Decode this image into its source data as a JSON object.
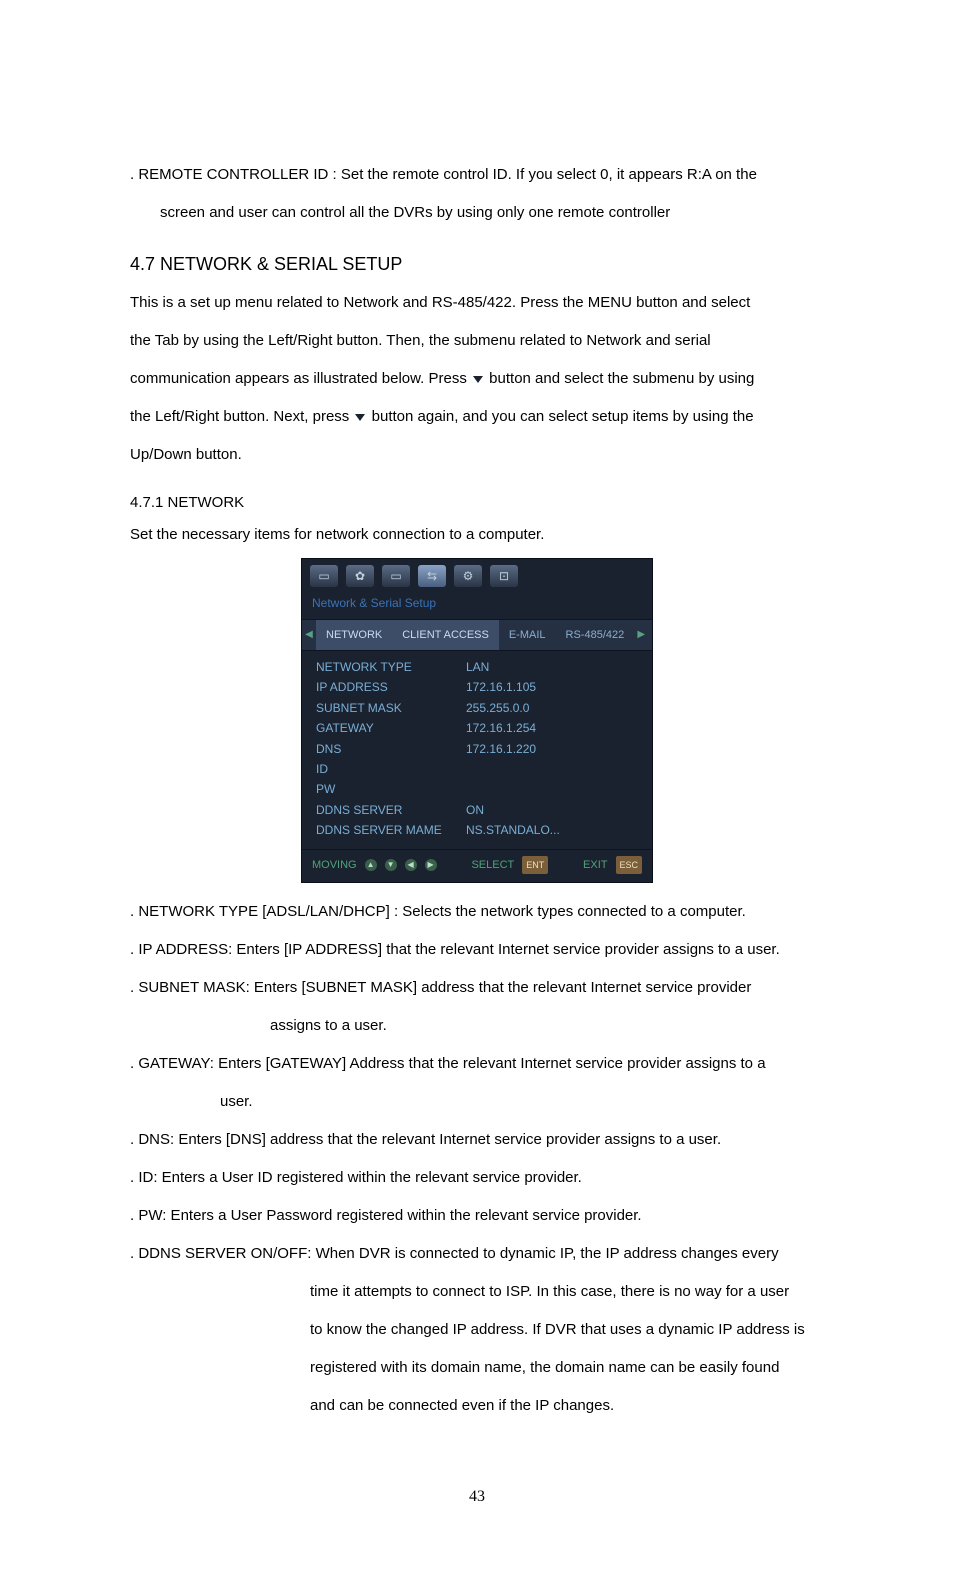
{
  "body": {
    "remote_line1": ". REMOTE CONTROLLER ID : Set the remote control ID. If you select 0, it appears R:A on the",
    "remote_line2": "screen and user can control all the DVRs by using only one remote controller",
    "section_heading": "4.7 NETWORK & SERIAL SETUP",
    "intro_l1": "This is a set up menu related to Network and RS-485/422.    Press the MENU button and select",
    "intro_l2": "the Tab by using the Left/Right button. Then, the submenu related to Network and serial",
    "intro_l3a": "communication appears as illustrated below. Press ",
    "intro_l3b": " button and select the submenu by using",
    "intro_l4a": "the Left/Right button. Next, press  ",
    "intro_l4b": " button again, and you can select setup items by using the",
    "intro_l5": "Up/Down button.",
    "sub_heading": " 4.7.1 NETWORK",
    "sub_intro": "Set the necessary items for network connection to a computer.",
    "net_type": ". NETWORK TYPE [ADSL/LAN/DHCP] : Selects the network types connected to a computer.",
    "ip_addr": ". IP ADDRESS: Enters [IP ADDRESS] that the relevant Internet service provider assigns to a user.",
    "subnet_l1": ". SUBNET MASK: Enters [SUBNET MASK] address that the relevant Internet service provider",
    "subnet_l2": "assigns to a user.",
    "gateway_l1": ". GATEWAY: Enters [GATEWAY] Address that the relevant Internet service provider assigns to a",
    "gateway_l2": "user.",
    "dns": ". DNS: Enters [DNS] address that the relevant Internet service provider assigns to a user.",
    "id": ". ID: Enters a User ID registered within the relevant service provider.",
    "pw": ". PW: Enters a User Password registered within the relevant service provider.",
    "ddns_l1": ". DDNS SERVER ON/OFF: When DVR is connected to dynamic IP, the IP address changes every",
    "ddns_l2": "time it attempts to connect to ISP. In this case, there is no way for a user",
    "ddns_l3": "to know the changed IP address. If DVR that uses a dynamic IP address is",
    "ddns_l4": "registered with its domain name, the domain name can be easily found",
    "ddns_l5": "and can be connected even if the IP changes."
  },
  "dvr": {
    "title": "Network & Serial Setup",
    "icons": {
      "i1": "▭",
      "i2": "✿",
      "i3": "▭",
      "i4": "⇆",
      "i5": "⚙",
      "i6": "⊡"
    },
    "tabs": {
      "arrow_left": "◀",
      "network": "NETWORK",
      "client": "CLIENT ACCESS",
      "email": "E-MAIL",
      "rs": "RS-485/422",
      "arrow_right": "▶"
    },
    "rows": {
      "r1_l": "NETWORK TYPE",
      "r1_v": "LAN",
      "r2_l": "IP ADDRESS",
      "r2_v": "172.16.1.105",
      "r3_l": "SUBNET MASK",
      "r3_v": "255.255.0.0",
      "r4_l": "GATEWAY",
      "r4_v": "172.16.1.254",
      "r5_l": "DNS",
      "r5_v": "172.16.1.220",
      "r6_l": "ID",
      "r6_v": "",
      "r7_l": "PW",
      "r7_v": "",
      "r8_l": "DDNS SERVER",
      "r8_v": "ON",
      "r9_l": "DDNS SERVER MAME",
      "r9_v": "NS.STANDALO..."
    },
    "footer": {
      "moving": "MOVING",
      "select": "SELECT",
      "ent": "ENT",
      "exit": "EXIT",
      "esc": "ESC"
    }
  },
  "page_number": "43"
}
